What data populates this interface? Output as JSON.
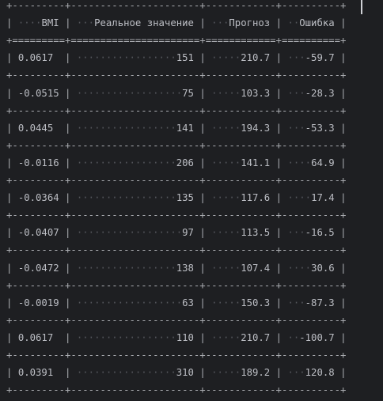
{
  "table": {
    "columns": [
      "BMI",
      "Реальное значение",
      "Прогноз",
      "Ошибка"
    ],
    "rows": [
      [
        "0.0617",
        "151",
        "210.7",
        "-59.7"
      ],
      [
        "-0.0515",
        "75",
        "103.3",
        "-28.3"
      ],
      [
        "0.0445",
        "141",
        "194.3",
        "-53.3"
      ],
      [
        "-0.0116",
        "206",
        "141.1",
        "64.9"
      ],
      [
        "-0.0364",
        "135",
        "117.6",
        "17.4"
      ],
      [
        "-0.0407",
        "97",
        "113.5",
        "-16.5"
      ],
      [
        "-0.0472",
        "138",
        "107.4",
        "30.6"
      ],
      [
        "-0.0019",
        "63",
        "150.3",
        "-87.3"
      ],
      [
        "0.0617",
        "110",
        "210.7",
        "-100.7"
      ],
      [
        "0.0391",
        "310",
        "189.2",
        "120.8"
      ]
    ]
  },
  "colors": {
    "background": "#1e1f22",
    "text": "#bcbec4",
    "dots": "#55575d"
  }
}
